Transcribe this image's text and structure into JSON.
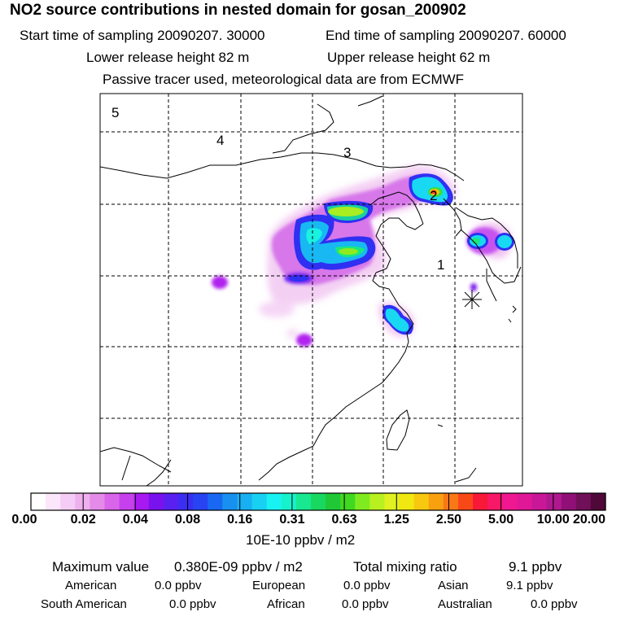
{
  "header": {
    "title": "NO2 source contributions in nested domain for gosan_200902",
    "start_time": "Start time of sampling 20090207. 30000",
    "end_time": "End time of sampling 20090207. 60000",
    "lower_release": "Lower release height   82 m",
    "upper_release": "Upper release height   62 m",
    "tracer_note": "Passive tracer used, meteorological data are from ECMWF"
  },
  "map": {
    "region_labels": [
      "1",
      "2",
      "3",
      "4",
      "5"
    ],
    "receptor_marker": "gosan-station-star"
  },
  "colorbar": {
    "unit": "10E-10 ppbv / m2",
    "ticks": [
      "0.00",
      "0.02",
      "0.04",
      "0.08",
      "0.16",
      "0.31",
      "0.63",
      "1.25",
      "2.50",
      "5.00",
      "10.00",
      "20.00"
    ],
    "colors": [
      "#ffffff",
      "#fbe6fb",
      "#f5ccf5",
      "#eeb0ee",
      "#e48ae8",
      "#d865ea",
      "#c640ee",
      "#a818f0",
      "#7a12ee",
      "#5a20f0",
      "#3b2ef2",
      "#2844f2",
      "#1868f2",
      "#1890f0",
      "#18b0f2",
      "#18d0f2",
      "#18f2f2",
      "#16f2cc",
      "#18e890",
      "#18d860",
      "#20c838",
      "#40d820",
      "#80ea20",
      "#b8f020",
      "#e0f020",
      "#f0e810",
      "#f8c810",
      "#f8a010",
      "#f87818",
      "#f84818",
      "#f81838",
      "#f81868",
      "#f01890",
      "#e01898",
      "#c81898",
      "#b01890",
      "#901078",
      "#701058",
      "#500838"
    ]
  },
  "summary": {
    "max_value_label": "Maximum value",
    "max_value": "0.380E-09 ppbv / m2",
    "total_label": "Total mixing ratio",
    "total_value": "9.1 ppbv",
    "sources": [
      {
        "name": "American",
        "value": "0.0 ppbv"
      },
      {
        "name": "European",
        "value": "0.0 ppbv"
      },
      {
        "name": "Asian",
        "value": "9.1 ppbv"
      },
      {
        "name": "South American",
        "value": "0.0 ppbv"
      },
      {
        "name": "African",
        "value": "0.0 ppbv"
      },
      {
        "name": "Australian",
        "value": "0.0 ppbv"
      }
    ]
  }
}
